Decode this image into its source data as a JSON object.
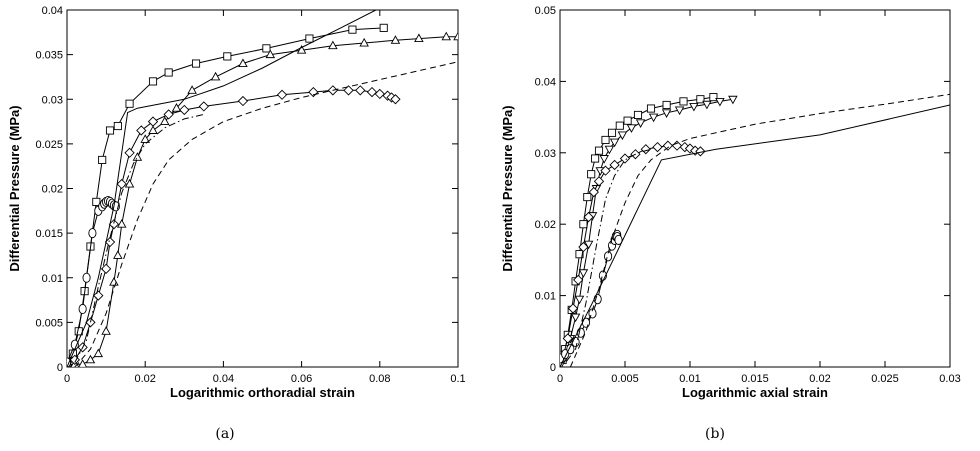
{
  "chart_data": [
    {
      "panel": "a",
      "type": "line",
      "caption": "(a)",
      "xlabel": "Logarithmic orthoradial strain",
      "ylabel": "Differential Pressure (MPa)",
      "xlim": [
        0,
        0.1
      ],
      "ylim": [
        0,
        0.04
      ],
      "xticks": [
        "0",
        "0.02",
        "0.04",
        "0.06",
        "0.08",
        "0.1"
      ],
      "yticks": [
        "0",
        "0.005",
        "0.01",
        "0.015",
        "0.02",
        "0.025",
        "0.03",
        "0.035",
        "0.04"
      ],
      "grid": false,
      "series": [
        {
          "marker": "square",
          "line": "solid",
          "points": [
            [
              0,
              0.0005
            ],
            [
              0.0015,
              0.0015
            ],
            [
              0.003,
              0.004
            ],
            [
              0.0045,
              0.0085
            ],
            [
              0.006,
              0.0135
            ],
            [
              0.0075,
              0.0185
            ],
            [
              0.009,
              0.0232
            ],
            [
              0.011,
              0.0265
            ],
            [
              0.013,
              0.027
            ],
            [
              0.016,
              0.0295
            ],
            [
              0.022,
              0.032
            ],
            [
              0.026,
              0.033
            ],
            [
              0.033,
              0.034
            ],
            [
              0.041,
              0.0348
            ],
            [
              0.051,
              0.0357
            ],
            [
              0.062,
              0.0368
            ],
            [
              0.073,
              0.0378
            ],
            [
              0.081,
              0.038
            ]
          ]
        },
        {
          "marker": "triangle-up",
          "line": "solid",
          "points": [
            [
              0,
              0.0003
            ],
            [
              0.002,
              0.0003
            ],
            [
              0.004,
              0.0003
            ],
            [
              0.006,
              0.0008
            ],
            [
              0.008,
              0.0015
            ],
            [
              0.01,
              0.004
            ],
            [
              0.012,
              0.0095
            ],
            [
              0.013,
              0.0125
            ],
            [
              0.014,
              0.016
            ],
            [
              0.016,
              0.0205
            ],
            [
              0.018,
              0.0235
            ],
            [
              0.02,
              0.0255
            ],
            [
              0.022,
              0.0265
            ],
            [
              0.025,
              0.0275
            ],
            [
              0.028,
              0.029
            ],
            [
              0.032,
              0.031
            ],
            [
              0.038,
              0.0325
            ],
            [
              0.045,
              0.034
            ],
            [
              0.052,
              0.035
            ],
            [
              0.06,
              0.0355
            ],
            [
              0.068,
              0.036
            ],
            [
              0.076,
              0.0363
            ],
            [
              0.084,
              0.0366
            ],
            [
              0.09,
              0.0368
            ],
            [
              0.097,
              0.037
            ],
            [
              0.1,
              0.037
            ]
          ]
        },
        {
          "marker": "diamond",
          "line": "solid",
          "points": [
            [
              0,
              0.0002
            ],
            [
              0.002,
              0.0008
            ],
            [
              0.004,
              0.0022
            ],
            [
              0.006,
              0.005
            ],
            [
              0.008,
              0.008
            ],
            [
              0.01,
              0.011
            ],
            [
              0.011,
              0.014
            ],
            [
              0.012,
              0.016
            ],
            [
              0.014,
              0.0205
            ],
            [
              0.016,
              0.024
            ],
            [
              0.019,
              0.0265
            ],
            [
              0.022,
              0.0275
            ],
            [
              0.026,
              0.0283
            ],
            [
              0.03,
              0.0288
            ],
            [
              0.035,
              0.0292
            ],
            [
              0.045,
              0.0298
            ],
            [
              0.055,
              0.0305
            ],
            [
              0.063,
              0.0308
            ],
            [
              0.068,
              0.031
            ],
            [
              0.072,
              0.031
            ],
            [
              0.075,
              0.031
            ],
            [
              0.078,
              0.0308
            ],
            [
              0.08,
              0.0306
            ],
            [
              0.082,
              0.0304
            ],
            [
              0.083,
              0.0302
            ],
            [
              0.084,
              0.03
            ]
          ]
        },
        {
          "marker": "circle",
          "line": "solid",
          "points": [
            [
              0,
              0.0005
            ],
            [
              0.002,
              0.0025
            ],
            [
              0.004,
              0.0065
            ],
            [
              0.005,
              0.01
            ],
            [
              0.0065,
              0.015
            ],
            [
              0.008,
              0.0175
            ],
            [
              0.009,
              0.018
            ],
            [
              0.0095,
              0.0183
            ],
            [
              0.01,
              0.0185
            ],
            [
              0.0105,
              0.0186
            ],
            [
              0.011,
              0.0185
            ],
            [
              0.0115,
              0.0183
            ],
            [
              0.012,
              0.0181
            ],
            [
              0.0125,
              0.018
            ]
          ]
        },
        {
          "marker": "none",
          "line": "solid",
          "points": [
            [
              0,
              0
            ],
            [
              0.005,
              0.005
            ],
            [
              0.008,
              0.01
            ],
            [
              0.012,
              0.018
            ],
            [
              0.0155,
              0.0285
            ],
            [
              0.018,
              0.029
            ],
            [
              0.024,
              0.0295
            ],
            [
              0.03,
              0.03
            ],
            [
              0.04,
              0.0315
            ],
            [
              0.05,
              0.0335
            ],
            [
              0.06,
              0.0358
            ],
            [
              0.07,
              0.038
            ],
            [
              0.079,
              0.04
            ]
          ]
        },
        {
          "marker": "none",
          "line": "dashed",
          "points": [
            [
              0.002,
              0
            ],
            [
              0.006,
              0.002
            ],
            [
              0.01,
              0.006
            ],
            [
              0.014,
              0.0115
            ],
            [
              0.018,
              0.0165
            ],
            [
              0.022,
              0.0205
            ],
            [
              0.026,
              0.0232
            ],
            [
              0.032,
              0.0255
            ],
            [
              0.04,
              0.0275
            ],
            [
              0.05,
              0.029
            ],
            [
              0.06,
              0.0302
            ],
            [
              0.07,
              0.0312
            ],
            [
              0.08,
              0.0322
            ],
            [
              0.09,
              0.0332
            ],
            [
              0.1,
              0.0342
            ]
          ]
        },
        {
          "marker": "none",
          "line": "dashdot",
          "points": [
            [
              0.002,
              0.0005
            ],
            [
              0.005,
              0.003
            ],
            [
              0.008,
              0.009
            ],
            [
              0.011,
              0.0145
            ],
            [
              0.014,
              0.0195
            ],
            [
              0.017,
              0.0228
            ],
            [
              0.02,
              0.025
            ],
            [
              0.025,
              0.0268
            ],
            [
              0.03,
              0.0278
            ],
            [
              0.035,
              0.0283
            ]
          ]
        }
      ]
    },
    {
      "panel": "b",
      "type": "line",
      "caption": "(b)",
      "xlabel": "Logarithmic axial strain",
      "ylabel": "Differential Pressure (MPa)",
      "xlim": [
        0,
        0.03
      ],
      "ylim": [
        0,
        0.05
      ],
      "xticks": [
        "0",
        "0.005",
        "0.01",
        "0.015",
        "0.02",
        "0.025",
        "0.03"
      ],
      "yticks": [
        "0",
        "0.01",
        "0.02",
        "0.03",
        "0.04",
        "0.05"
      ],
      "grid": false,
      "series": [
        {
          "marker": "square",
          "line": "solid",
          "points": [
            [
              0.0002,
              0.001
            ],
            [
              0.0004,
              0.0025
            ],
            [
              0.0006,
              0.0045
            ],
            [
              0.0009,
              0.008
            ],
            [
              0.0012,
              0.012
            ],
            [
              0.0015,
              0.0158
            ],
            [
              0.0018,
              0.02
            ],
            [
              0.0021,
              0.0238
            ],
            [
              0.0024,
              0.027
            ],
            [
              0.0027,
              0.0292
            ],
            [
              0.003,
              0.0303
            ],
            [
              0.0035,
              0.0318
            ],
            [
              0.004,
              0.0328
            ],
            [
              0.0046,
              0.0338
            ],
            [
              0.0052,
              0.0345
            ],
            [
              0.006,
              0.0353
            ],
            [
              0.007,
              0.0362
            ],
            [
              0.0082,
              0.0367
            ],
            [
              0.0095,
              0.0372
            ],
            [
              0.0108,
              0.0375
            ],
            [
              0.0118,
              0.0378
            ]
          ]
        },
        {
          "marker": "triangle-down",
          "line": "solid",
          "points": [
            [
              0.0001,
              0.0005
            ],
            [
              0.0004,
              0.0018
            ],
            [
              0.0008,
              0.004
            ],
            [
              0.0012,
              0.007
            ],
            [
              0.0015,
              0.0095
            ],
            [
              0.0018,
              0.0132
            ],
            [
              0.0022,
              0.0172
            ],
            [
              0.0025,
              0.0212
            ],
            [
              0.0028,
              0.025
            ],
            [
              0.0031,
              0.0275
            ],
            [
              0.0034,
              0.0292
            ],
            [
              0.0038,
              0.0305
            ],
            [
              0.0042,
              0.0315
            ],
            [
              0.0048,
              0.0325
            ],
            [
              0.0055,
              0.0335
            ],
            [
              0.0062,
              0.0342
            ],
            [
              0.0072,
              0.035
            ],
            [
              0.0082,
              0.0356
            ],
            [
              0.0092,
              0.036
            ],
            [
              0.0103,
              0.0365
            ],
            [
              0.0113,
              0.0368
            ],
            [
              0.0123,
              0.0372
            ],
            [
              0.0133,
              0.0375
            ]
          ]
        },
        {
          "marker": "diamond",
          "line": "solid",
          "points": [
            [
              0.0002,
              0.0012
            ],
            [
              0.0006,
              0.004
            ],
            [
              0.001,
              0.0082
            ],
            [
              0.0014,
              0.0122
            ],
            [
              0.0018,
              0.0168
            ],
            [
              0.0022,
              0.021
            ],
            [
              0.0026,
              0.0245
            ],
            [
              0.003,
              0.026
            ],
            [
              0.0035,
              0.0275
            ],
            [
              0.0042,
              0.0283
            ],
            [
              0.005,
              0.0292
            ],
            [
              0.0058,
              0.0298
            ],
            [
              0.0066,
              0.0305
            ],
            [
              0.0075,
              0.0308
            ],
            [
              0.0083,
              0.031
            ],
            [
              0.009,
              0.031
            ],
            [
              0.0096,
              0.0308
            ],
            [
              0.01,
              0.0306
            ],
            [
              0.0104,
              0.0303
            ],
            [
              0.0108,
              0.0302
            ]
          ]
        },
        {
          "marker": "circle",
          "line": "solid",
          "points": [
            [
              0,
              0.0012
            ],
            [
              0.0004,
              0.0018
            ],
            [
              0.0008,
              0.0025
            ],
            [
              0.0012,
              0.0035
            ],
            [
              0.0016,
              0.0048
            ],
            [
              0.002,
              0.0062
            ],
            [
              0.0025,
              0.0075
            ],
            [
              0.0029,
              0.0095
            ],
            [
              0.0033,
              0.0128
            ],
            [
              0.0037,
              0.0155
            ],
            [
              0.004,
              0.017
            ],
            [
              0.0042,
              0.0178
            ],
            [
              0.0043,
              0.0183
            ],
            [
              0.0044,
              0.0185
            ],
            [
              0.0044,
              0.0182
            ],
            [
              0.0045,
              0.0178
            ]
          ]
        },
        {
          "marker": "none",
          "line": "solid",
          "points": [
            [
              0,
              0
            ],
            [
              0.0025,
              0.009
            ],
            [
              0.0078,
              0.029
            ],
            [
              0.012,
              0.0305
            ],
            [
              0.02,
              0.0325
            ],
            [
              0.03,
              0.0367
            ]
          ]
        },
        {
          "marker": "none",
          "line": "dashed",
          "points": [
            [
              0.0008,
              0
            ],
            [
              0.002,
              0.005
            ],
            [
              0.003,
              0.011
            ],
            [
              0.004,
              0.018
            ],
            [
              0.005,
              0.023
            ],
            [
              0.006,
              0.0268
            ],
            [
              0.007,
              0.029
            ],
            [
              0.0085,
              0.031
            ],
            [
              0.01,
              0.032
            ],
            [
              0.015,
              0.034
            ],
            [
              0.02,
              0.0355
            ],
            [
              0.025,
              0.0368
            ],
            [
              0.03,
              0.0382
            ]
          ]
        },
        {
          "marker": "none",
          "line": "dashdot",
          "points": [
            [
              0.0005,
              0.0008
            ],
            [
              0.0012,
              0.0025
            ],
            [
              0.002,
              0.009
            ],
            [
              0.0028,
              0.017
            ],
            [
              0.0035,
              0.0235
            ],
            [
              0.0042,
              0.0268
            ],
            [
              0.005,
              0.029
            ],
            [
              0.006,
              0.03
            ],
            [
              0.007,
              0.0305
            ]
          ]
        }
      ]
    }
  ]
}
